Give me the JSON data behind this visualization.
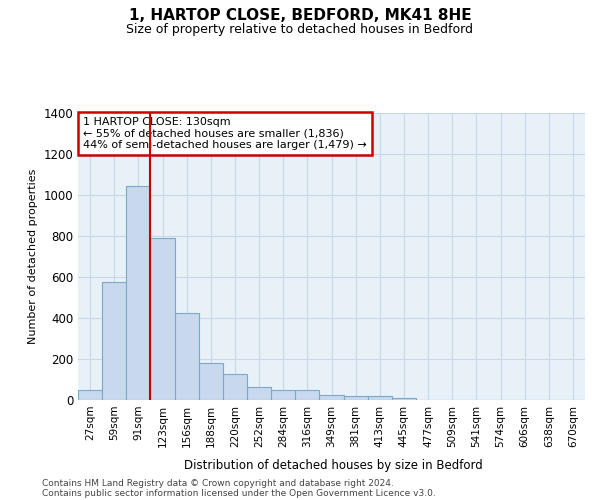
{
  "title1": "1, HARTOP CLOSE, BEDFORD, MK41 8HE",
  "title2": "Size of property relative to detached houses in Bedford",
  "xlabel": "Distribution of detached houses by size in Bedford",
  "ylabel": "Number of detached properties",
  "categories": [
    "27sqm",
    "59sqm",
    "91sqm",
    "123sqm",
    "156sqm",
    "188sqm",
    "220sqm",
    "252sqm",
    "284sqm",
    "316sqm",
    "349sqm",
    "381sqm",
    "413sqm",
    "445sqm",
    "477sqm",
    "509sqm",
    "541sqm",
    "574sqm",
    "606sqm",
    "638sqm",
    "670sqm"
  ],
  "values": [
    50,
    575,
    1040,
    790,
    425,
    180,
    125,
    65,
    50,
    50,
    25,
    20,
    20,
    10,
    0,
    0,
    0,
    0,
    0,
    0,
    0
  ],
  "bar_color": "#c8d8ed",
  "bar_edge_color": "#7aaac8",
  "vline_index": 2.5,
  "annotation_line1": "1 HARTOP CLOSE: 130sqm",
  "annotation_line2": "← 55% of detached houses are smaller (1,836)",
  "annotation_line3": "44% of semi-detached houses are larger (1,479) →",
  "vline_color": "#cc0000",
  "ann_box_edge": "#cc0000",
  "ann_box_face": "#ffffff",
  "ylim_max": 1400,
  "yticks": [
    0,
    200,
    400,
    600,
    800,
    1000,
    1200,
    1400
  ],
  "grid_color": "#c8d8e8",
  "plot_bg": "#e8f0f8",
  "fig_bg": "#ffffff",
  "footer1": "Contains HM Land Registry data © Crown copyright and database right 2024.",
  "footer2": "Contains public sector information licensed under the Open Government Licence v3.0."
}
